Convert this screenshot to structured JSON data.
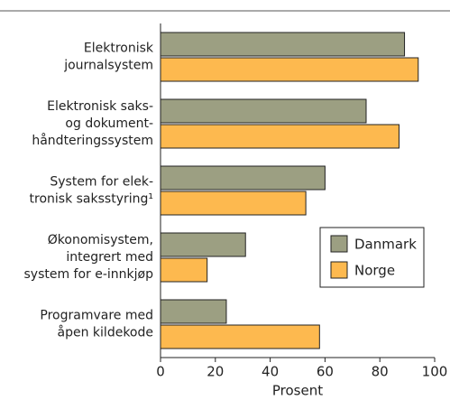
{
  "chart_data": {
    "type": "barh",
    "categories": [
      [
        "Elektronisk",
        "journalsystem"
      ],
      [
        "Elektronisk saks-",
        "og dokument-",
        "håndteringssystem"
      ],
      [
        "System for elek-",
        "tronisk saksstyring¹"
      ],
      [
        "Økonomisystem,",
        "integrert med",
        "system for e-innkjøp"
      ],
      [
        "Programvare med",
        "åpen kildekode"
      ]
    ],
    "series": [
      {
        "name": "Danmark",
        "color": "#9c9f82",
        "values": [
          89,
          75,
          60,
          31,
          24
        ]
      },
      {
        "name": "Norge",
        "color": "#fdb94f",
        "values": [
          94,
          87,
          53,
          17,
          58
        ]
      }
    ],
    "xlabel": "Prosent",
    "xlim": [
      0,
      100
    ],
    "xticks": [
      0,
      20,
      40,
      60,
      80,
      100
    ],
    "legend": "lower right"
  }
}
